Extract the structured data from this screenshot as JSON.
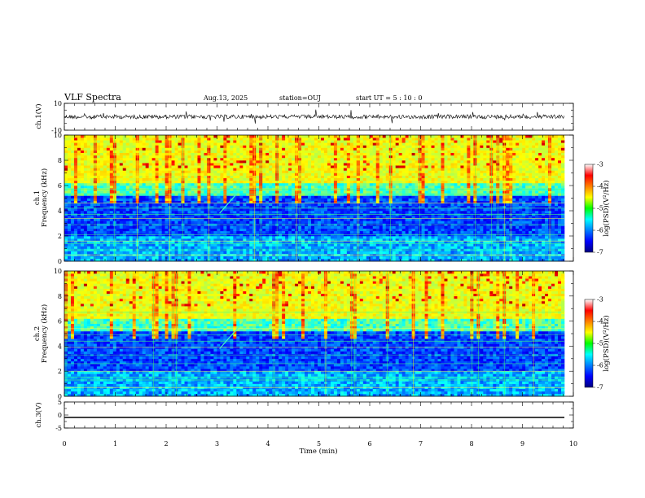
{
  "header": {
    "title": "VLF Spectra",
    "date": "Aug.13, 2025",
    "station": "station=OUJ",
    "start_ut": "start  UT =   5 : 10 : 0"
  },
  "chart_data": [
    {
      "type": "line",
      "panel": "ch1-waveform",
      "ylabel": "ch.1(V)",
      "ylim": [
        -10,
        10
      ],
      "yticks": [
        "10",
        "-10"
      ],
      "x": [
        0,
        10
      ],
      "description_level": 0,
      "series": [
        {
          "values_approx_range": [
            -3,
            3
          ]
        }
      ]
    },
    {
      "type": "heatmap",
      "panel": "ch1-spectrogram",
      "ylabel": "ch.1\nFrequency  (kHz)",
      "ylim": [
        0,
        10
      ],
      "yticks": [
        "0",
        "2",
        "4",
        "6",
        "8",
        "10"
      ],
      "xlim": [
        0,
        9.85
      ],
      "colorbar": {
        "label": "log(PSD)(V²/Hz)",
        "ticks": [
          "-3",
          "-4",
          "-5",
          "-6",
          "-7"
        ],
        "range": [
          -7,
          -3
        ]
      }
    },
    {
      "type": "heatmap",
      "panel": "ch2-spectrogram",
      "ylabel": "ch.2\nFrequency  (kHz)",
      "ylim": [
        0,
        10
      ],
      "yticks": [
        "0",
        "2",
        "4",
        "6",
        "8",
        "10"
      ],
      "xlim": [
        0,
        9.85
      ],
      "colorbar": {
        "label": "log(PSD)(V²/Hz)",
        "ticks": [
          "-3",
          "-4",
          "-5",
          "-6",
          "-7"
        ],
        "range": [
          -7,
          -3
        ]
      }
    },
    {
      "type": "line",
      "panel": "ch3-waveform",
      "ylabel": "ch.3(V)",
      "ylim": [
        -5,
        5
      ],
      "yticks": [
        "5",
        "0",
        "-5"
      ],
      "series": [
        {
          "x": [
            0,
            9.85
          ],
          "values": [
            -1.2,
            -1.2
          ]
        }
      ]
    }
  ],
  "xaxis": {
    "label": "Time  (min)",
    "ticks": [
      "0",
      "1",
      "2",
      "3",
      "4",
      "5",
      "6",
      "7",
      "8",
      "9",
      "10"
    ],
    "range": [
      0,
      10
    ]
  },
  "colorbar_labels": {
    "ch1": "log(PSD)(V²/Hz)",
    "ch2": "log(PSD)(V²/Hz)"
  },
  "ylabels": {
    "ch1_wave": "ch.1(V)",
    "ch1_spec_a": "ch.1",
    "ch1_spec_b": "Frequency  (kHz)",
    "ch2_spec_a": "ch.2",
    "ch2_spec_b": "Frequency  (kHz)",
    "ch3_wave": "ch.3(V)"
  }
}
